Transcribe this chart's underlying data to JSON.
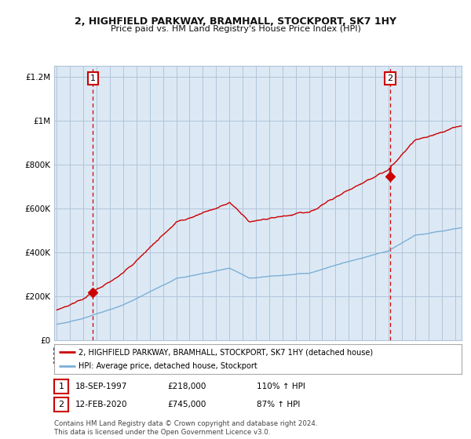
{
  "title1": "2, HIGHFIELD PARKWAY, BRAMHALL, STOCKPORT, SK7 1HY",
  "title2": "Price paid vs. HM Land Registry's House Price Index (HPI)",
  "legend_line1": "2, HIGHFIELD PARKWAY, BRAMHALL, STOCKPORT, SK7 1HY (detached house)",
  "legend_line2": "HPI: Average price, detached house, Stockport",
  "annotation1_label": "1",
  "annotation1_date": "18-SEP-1997",
  "annotation1_price": "£218,000",
  "annotation1_hpi": "110% ↑ HPI",
  "annotation2_label": "2",
  "annotation2_date": "12-FEB-2020",
  "annotation2_price": "£745,000",
  "annotation2_hpi": "87% ↑ HPI",
  "footer": "Contains HM Land Registry data © Crown copyright and database right 2024.\nThis data is licensed under the Open Government Licence v3.0.",
  "sale1_year": 1997.72,
  "sale1_value": 218000,
  "sale2_year": 2020.12,
  "sale2_value": 745000,
  "red_color": "#cc0000",
  "blue_color": "#7bafd4",
  "plot_bg_color": "#dce9f5",
  "background_color": "#ffffff",
  "grid_color": "#b0c4d8",
  "ylim_max": 1250000,
  "ylim_min": 0,
  "xlim_min": 1994.8,
  "xlim_max": 2025.5
}
